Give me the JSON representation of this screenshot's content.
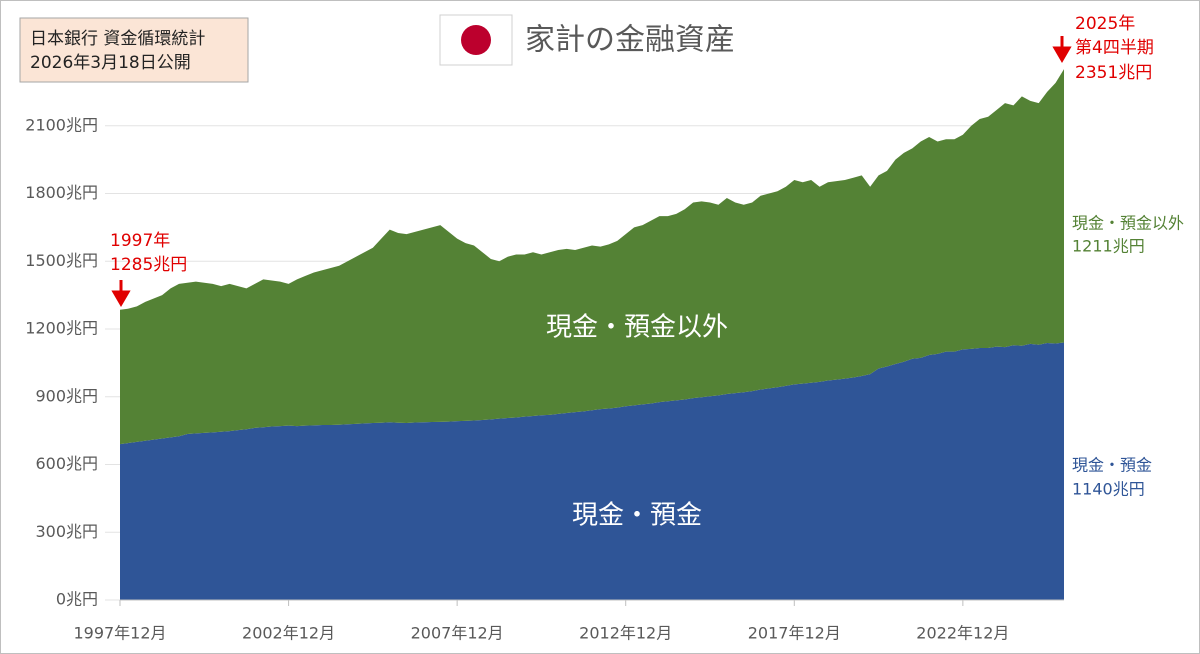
{
  "chart_data": {
    "type": "stacked_area",
    "title": "家計の金融資産",
    "source": [
      "日本銀行  資金循環統計",
      "2026年3月18日公開"
    ],
    "annotations": {
      "start": [
        "1997年",
        "1285兆円"
      ],
      "end": [
        "2025年",
        "第4四半期",
        "2351兆円"
      ]
    },
    "categories": [
      "1997年12月",
      null,
      null,
      null,
      null,
      null,
      null,
      null,
      null,
      null,
      null,
      null,
      null,
      null,
      null,
      null,
      null,
      null,
      null,
      null,
      "2002年12月",
      null,
      null,
      null,
      null,
      null,
      null,
      null,
      null,
      null,
      null,
      null,
      null,
      null,
      null,
      null,
      null,
      null,
      null,
      null,
      "2007年12月",
      null,
      null,
      null,
      null,
      null,
      null,
      null,
      null,
      null,
      null,
      null,
      null,
      null,
      null,
      null,
      null,
      null,
      null,
      null,
      "2012年12月",
      null,
      null,
      null,
      null,
      null,
      null,
      null,
      null,
      null,
      null,
      null,
      null,
      null,
      null,
      null,
      null,
      null,
      null,
      null,
      "2017年12月",
      null,
      null,
      null,
      null,
      null,
      null,
      null,
      null,
      null,
      null,
      null,
      null,
      null,
      null,
      null,
      null,
      null,
      null,
      null,
      "2022年12月",
      null,
      null,
      null,
      null,
      null,
      null,
      null,
      null,
      null,
      null,
      null,
      null
    ],
    "series": [
      {
        "name": "現金・預金",
        "color": "#2f5597",
        "end_label": "1140兆円",
        "values": [
          690,
          695,
          700,
          705,
          710,
          715,
          720,
          725,
          735,
          738,
          740,
          742,
          745,
          748,
          752,
          756,
          762,
          765,
          768,
          770,
          772,
          770,
          772,
          773,
          775,
          775,
          776,
          778,
          780,
          782,
          784,
          785,
          787,
          785,
          784,
          786,
          787,
          788,
          789,
          790,
          792,
          793,
          795,
          797,
          800,
          803,
          806,
          808,
          812,
          815,
          818,
          820,
          824,
          828,
          832,
          835,
          840,
          845,
          848,
          852,
          858,
          862,
          866,
          870,
          876,
          880,
          884,
          888,
          894,
          898,
          902,
          906,
          912,
          916,
          920,
          925,
          932,
          937,
          942,
          948,
          955,
          958,
          962,
          966,
          972,
          976,
          980,
          985,
          992,
          1000,
          1025,
          1034,
          1045,
          1055,
          1068,
          1072,
          1085,
          1090,
          1100,
          1100,
          1110,
          1112,
          1116,
          1116,
          1122,
          1120,
          1128,
          1126,
          1134,
          1130,
          1138,
          1136,
          1140
        ]
      },
      {
        "name": "現金・預金以外",
        "color": "#548235",
        "end_label": "1211兆円",
        "values": [
          595,
          595,
          600,
          615,
          625,
          635,
          660,
          675,
          670,
          672,
          665,
          658,
          645,
          652,
          638,
          624,
          638,
          655,
          647,
          640,
          628,
          650,
          663,
          677,
          685,
          695,
          704,
          722,
          740,
          758,
          776,
          815,
          853,
          840,
          836,
          844,
          853,
          862,
          871,
          840,
          808,
          787,
          775,
          743,
          710,
          697,
          714,
          722,
          718,
          725,
          712,
          720,
          726,
          727,
          718,
          725,
          730,
          720,
          727,
          738,
          762,
          788,
          794,
          810,
          824,
          820,
          826,
          842,
          866,
          867,
          858,
          844,
          868,
          844,
          830,
          835,
          858,
          863,
          868,
          882,
          905,
          892,
          898,
          864,
          878,
          879,
          880,
          885,
          888,
          830,
          855,
          866,
          905,
          925,
          932,
          958,
          965,
          940,
          940,
          940,
          950,
          988,
          1014,
          1024,
          1048,
          1080,
          1062,
          1104,
          1076,
          1070,
          1112,
          1154,
          1211
        ]
      }
    ],
    "ylim": [
      0,
      2400
    ],
    "yticks": [
      {
        "value": 0,
        "label": "0兆円"
      },
      {
        "value": 300,
        "label": "300兆円"
      },
      {
        "value": 600,
        "label": "600兆円"
      },
      {
        "value": 900,
        "label": "900兆円"
      },
      {
        "value": 1200,
        "label": "1200兆円"
      },
      {
        "value": 1500,
        "label": "1500兆円"
      },
      {
        "value": 1800,
        "label": "1800兆円"
      },
      {
        "value": 2100,
        "label": "2100兆円"
      }
    ],
    "grid": true
  }
}
